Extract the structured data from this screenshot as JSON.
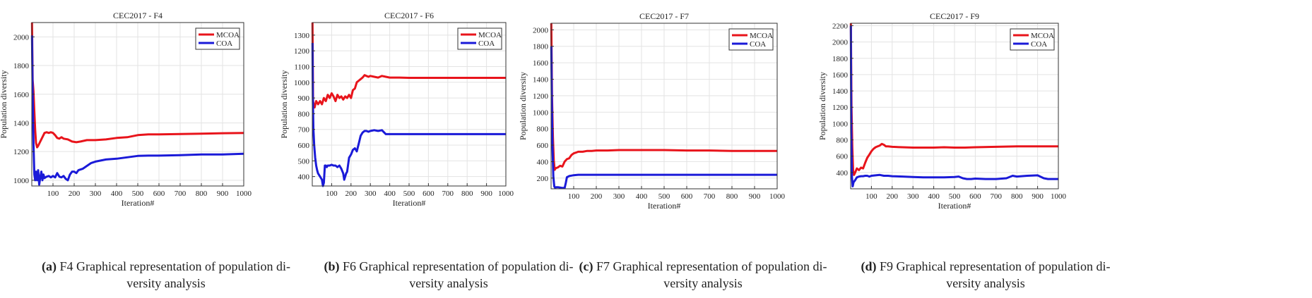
{
  "chart_data": [
    {
      "type": "line",
      "title": "CEC2017 - F4",
      "xlabel": "Iteration#",
      "ylabel": "Population diversity",
      "xlim": [
        0,
        1000
      ],
      "ylim": [
        960,
        2100
      ],
      "xticks": [
        100,
        200,
        300,
        400,
        500,
        600,
        700,
        800,
        900,
        1000
      ],
      "yticks": [
        1000,
        1200,
        1400,
        1600,
        1800,
        2000
      ],
      "grid": true,
      "legend_position": "top-right",
      "series": [
        {
          "name": "MCOA",
          "color": "#e8141b",
          "x": [
            1,
            4,
            8,
            12,
            16,
            20,
            25,
            30,
            40,
            50,
            60,
            70,
            80,
            90,
            100,
            110,
            120,
            130,
            140,
            150,
            170,
            190,
            210,
            230,
            260,
            300,
            350,
            400,
            450,
            500,
            550,
            600,
            700,
            800,
            900,
            1000
          ],
          "y": [
            2100,
            1700,
            1620,
            1480,
            1350,
            1260,
            1230,
            1240,
            1270,
            1300,
            1330,
            1335,
            1330,
            1335,
            1330,
            1315,
            1295,
            1290,
            1300,
            1290,
            1285,
            1270,
            1265,
            1270,
            1280,
            1280,
            1285,
            1295,
            1300,
            1315,
            1320,
            1320,
            1322,
            1325,
            1328,
            1330
          ]
        },
        {
          "name": "COA",
          "color": "#1a1ad8",
          "x": [
            1,
            4,
            8,
            12,
            16,
            20,
            25,
            30,
            35,
            40,
            45,
            50,
            55,
            60,
            70,
            80,
            90,
            100,
            110,
            120,
            130,
            140,
            150,
            160,
            170,
            180,
            190,
            200,
            210,
            220,
            240,
            260,
            280,
            300,
            350,
            400,
            450,
            500,
            550,
            600,
            700,
            800,
            900,
            1000
          ],
          "y": [
            2010,
            1600,
            1250,
            1040,
            1000,
            1060,
            1000,
            1070,
            970,
            1020,
            1060,
            1000,
            1040,
            1015,
            1025,
            1030,
            1020,
            1030,
            1020,
            1050,
            1025,
            1020,
            1030,
            1010,
            1000,
            1040,
            1060,
            1060,
            1050,
            1070,
            1080,
            1100,
            1120,
            1130,
            1145,
            1150,
            1160,
            1170,
            1172,
            1172,
            1175,
            1180,
            1180,
            1185
          ]
        }
      ],
      "caption": {
        "lead": "(a)",
        "line1": "F4 Graphical representation of population di-",
        "line2": "versity analysis"
      }
    },
    {
      "type": "line",
      "title": "CEC2017 - F6",
      "xlabel": "Iteration#",
      "ylabel": "Population diversity",
      "xlim": [
        0,
        1000
      ],
      "ylim": [
        340,
        1380
      ],
      "xticks": [
        100,
        200,
        300,
        400,
        500,
        600,
        700,
        800,
        900,
        1000
      ],
      "yticks": [
        400,
        500,
        600,
        700,
        800,
        900,
        1000,
        1100,
        1200,
        1300
      ],
      "grid": true,
      "legend_position": "top-right",
      "series": [
        {
          "name": "MCOA",
          "color": "#e8141b",
          "x": [
            1,
            4,
            8,
            12,
            20,
            30,
            40,
            50,
            60,
            70,
            80,
            90,
            100,
            110,
            120,
            130,
            140,
            150,
            160,
            170,
            180,
            190,
            200,
            210,
            220,
            230,
            240,
            250,
            260,
            270,
            280,
            290,
            300,
            320,
            340,
            360,
            380,
            400,
            450,
            500,
            600,
            700,
            800,
            900,
            1000
          ],
          "y": [
            1380,
            880,
            850,
            840,
            880,
            860,
            880,
            860,
            900,
            880,
            920,
            900,
            930,
            910,
            880,
            920,
            900,
            910,
            890,
            910,
            900,
            920,
            900,
            950,
            960,
            1000,
            1010,
            1020,
            1030,
            1045,
            1040,
            1035,
            1040,
            1035,
            1030,
            1040,
            1035,
            1030,
            1030,
            1028,
            1028,
            1028,
            1028,
            1028,
            1028
          ]
        },
        {
          "name": "COA",
          "color": "#1a1ad8",
          "x": [
            1,
            3,
            6,
            10,
            15,
            20,
            25,
            30,
            40,
            50,
            55,
            60,
            65,
            70,
            75,
            80,
            90,
            100,
            110,
            120,
            130,
            140,
            150,
            160,
            165,
            170,
            175,
            180,
            190,
            200,
            210,
            220,
            230,
            240,
            250,
            260,
            270,
            280,
            290,
            300,
            320,
            340,
            360,
            380,
            400,
            450,
            500,
            600,
            700,
            800,
            900,
            1000
          ],
          "y": [
            1250,
            900,
            700,
            600,
            520,
            470,
            440,
            420,
            400,
            380,
            340,
            360,
            470,
            470,
            460,
            470,
            470,
            475,
            470,
            470,
            460,
            470,
            450,
            420,
            380,
            400,
            420,
            430,
            520,
            540,
            570,
            580,
            560,
            610,
            660,
            680,
            690,
            690,
            685,
            690,
            695,
            690,
            695,
            670,
            670,
            670,
            670,
            670,
            670,
            670,
            670,
            670
          ]
        }
      ],
      "caption": {
        "lead": "(b)",
        "line1": "F6 Graphical representation of population di-",
        "line2": "versity analysis"
      }
    },
    {
      "type": "line",
      "title": "CEC2017 - F7",
      "xlabel": "Iteration#",
      "ylabel": "Population diversity",
      "xlim": [
        0,
        1000
      ],
      "ylim": [
        70,
        2080
      ],
      "xticks": [
        100,
        200,
        300,
        400,
        500,
        600,
        700,
        800,
        900,
        1000
      ],
      "yticks": [
        200,
        400,
        600,
        800,
        1000,
        1200,
        1400,
        1600,
        1800,
        2000
      ],
      "grid": true,
      "legend_position": "top-right",
      "series": [
        {
          "name": "MCOA",
          "color": "#e8141b",
          "x": [
            1,
            4,
            8,
            12,
            16,
            20,
            30,
            40,
            50,
            60,
            70,
            80,
            90,
            100,
            110,
            120,
            140,
            160,
            180,
            200,
            250,
            300,
            350,
            400,
            450,
            500,
            600,
            700,
            800,
            900,
            1000
          ],
          "y": [
            2080,
            1200,
            700,
            420,
            300,
            320,
            330,
            350,
            340,
            400,
            430,
            440,
            480,
            500,
            510,
            520,
            520,
            530,
            530,
            535,
            535,
            540,
            540,
            540,
            540,
            540,
            535,
            535,
            530,
            530,
            530
          ]
        },
        {
          "name": "COA",
          "color": "#1a1ad8",
          "x": [
            1,
            3,
            6,
            10,
            14,
            18,
            22,
            30,
            40,
            50,
            60,
            65,
            70,
            80,
            90,
            100,
            120,
            150,
            200,
            300,
            400,
            500,
            600,
            700,
            800,
            900,
            1000
          ],
          "y": [
            1800,
            1200,
            600,
            220,
            100,
            80,
            90,
            90,
            85,
            80,
            80,
            140,
            210,
            225,
            230,
            235,
            240,
            240,
            240,
            240,
            240,
            240,
            240,
            240,
            240,
            240,
            240
          ]
        }
      ],
      "caption": {
        "lead": "(c)",
        "line1": "F7 Graphical representation of population di-",
        "line2": "versity analysis"
      }
    },
    {
      "type": "line",
      "title": "CEC2017 - F9",
      "xlabel": "Iteration#",
      "ylabel": "Population diversity",
      "xlim": [
        0,
        1000
      ],
      "ylim": [
        200,
        2230
      ],
      "xticks": [
        100,
        200,
        300,
        400,
        500,
        600,
        700,
        800,
        900,
        1000
      ],
      "yticks": [
        400,
        600,
        800,
        1000,
        1200,
        1400,
        1600,
        1800,
        2000,
        2200
      ],
      "grid": true,
      "legend_position": "top-right",
      "series": [
        {
          "name": "MCOA",
          "color": "#e8141b",
          "x": [
            1,
            4,
            8,
            12,
            16,
            20,
            30,
            40,
            50,
            60,
            70,
            80,
            90,
            100,
            110,
            120,
            130,
            140,
            150,
            160,
            170,
            180,
            200,
            250,
            300,
            350,
            400,
            450,
            500,
            550,
            600,
            700,
            800,
            900,
            1000
          ],
          "y": [
            2230,
            1200,
            700,
            420,
            370,
            390,
            450,
            430,
            460,
            450,
            520,
            580,
            620,
            660,
            690,
            710,
            720,
            730,
            750,
            740,
            720,
            720,
            715,
            710,
            705,
            705,
            705,
            710,
            705,
            705,
            710,
            715,
            720,
            720,
            720
          ]
        },
        {
          "name": "COA",
          "color": "#1a1ad8",
          "x": [
            1,
            3,
            6,
            10,
            14,
            20,
            30,
            40,
            50,
            60,
            70,
            80,
            90,
            100,
            120,
            140,
            160,
            180,
            200,
            250,
            300,
            350,
            400,
            450,
            500,
            520,
            540,
            560,
            580,
            600,
            650,
            700,
            750,
            780,
            800,
            850,
            900,
            930,
            950,
            1000
          ],
          "y": [
            2200,
            900,
            350,
            230,
            280,
            300,
            340,
            350,
            355,
            355,
            360,
            360,
            350,
            360,
            365,
            370,
            360,
            360,
            355,
            350,
            345,
            340,
            340,
            340,
            345,
            350,
            330,
            320,
            320,
            325,
            320,
            320,
            330,
            360,
            350,
            360,
            365,
            330,
            320,
            320
          ]
        }
      ],
      "caption": {
        "lead": "(d)",
        "line1": "F9 Graphical representation of population di-",
        "line2": "versity analysis"
      }
    }
  ]
}
